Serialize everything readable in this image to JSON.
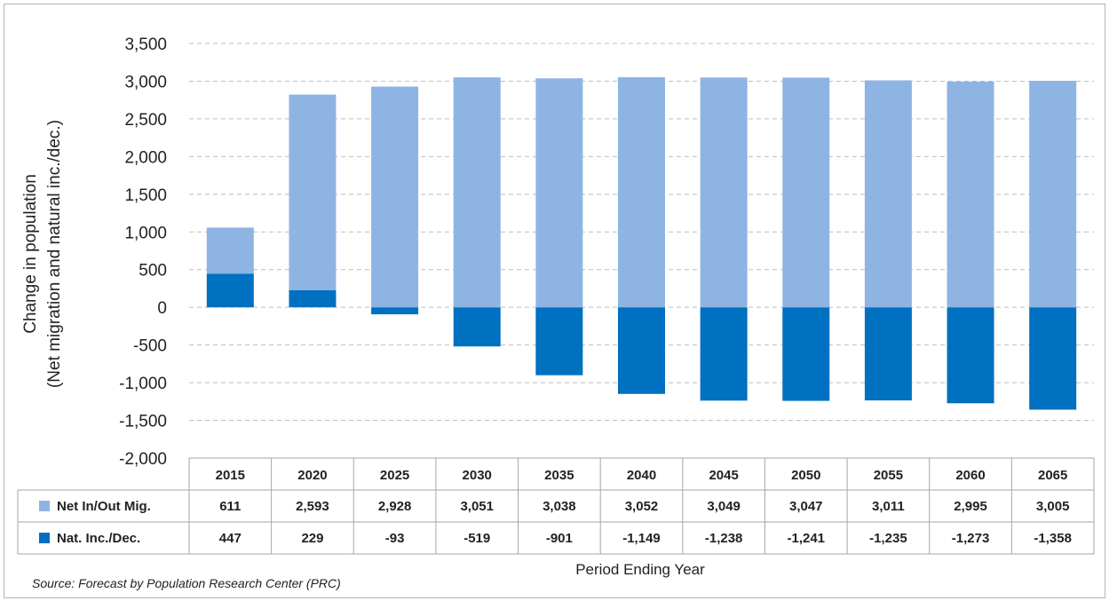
{
  "chart_data": {
    "type": "bar",
    "stacked": true,
    "categories": [
      "2015",
      "2020",
      "2025",
      "2030",
      "2035",
      "2040",
      "2045",
      "2050",
      "2055",
      "2060",
      "2065"
    ],
    "series": [
      {
        "name": "Net In/Out Mig.",
        "values": [
          611,
          2593,
          2928,
          3051,
          3038,
          3052,
          3049,
          3047,
          3011,
          2995,
          3005
        ],
        "labels": [
          "611",
          "2,593",
          "2,928",
          "3,051",
          "3,038",
          "3,052",
          "3,049",
          "3,047",
          "3,011",
          "2,995",
          "3,005"
        ],
        "color": "#8eb4e3"
      },
      {
        "name": "Nat. Inc./Dec.",
        "values": [
          447,
          229,
          -93,
          -519,
          -901,
          -1149,
          -1238,
          -1241,
          -1235,
          -1273,
          -1358
        ],
        "labels": [
          "447",
          "229",
          "-93",
          "-519",
          "-901",
          "-1,149",
          "-1,238",
          "-1,241",
          "-1,235",
          "-1,273",
          "-1,358"
        ],
        "color": "#0070c0"
      }
    ],
    "ylim": [
      -2000,
      3500
    ],
    "yticks": [
      3500,
      3000,
      2500,
      2000,
      1500,
      1000,
      500,
      0,
      -500,
      -1000,
      -1500,
      -2000
    ],
    "ytick_labels": [
      "3,500",
      "3,000",
      "2,500",
      "2,000",
      "1,500",
      "1,000",
      "500",
      "0",
      "-500",
      "-1,000",
      "-1,500",
      "-2,000"
    ],
    "ylabel_line1": "Change in population",
    "ylabel_line2": "(Net migration and natural inc./dec.)",
    "xlabel": "Period Ending Year",
    "grid": true,
    "legend": "data-table"
  },
  "source": "Source:  Forecast  by Population Research  Center  (PRC)"
}
